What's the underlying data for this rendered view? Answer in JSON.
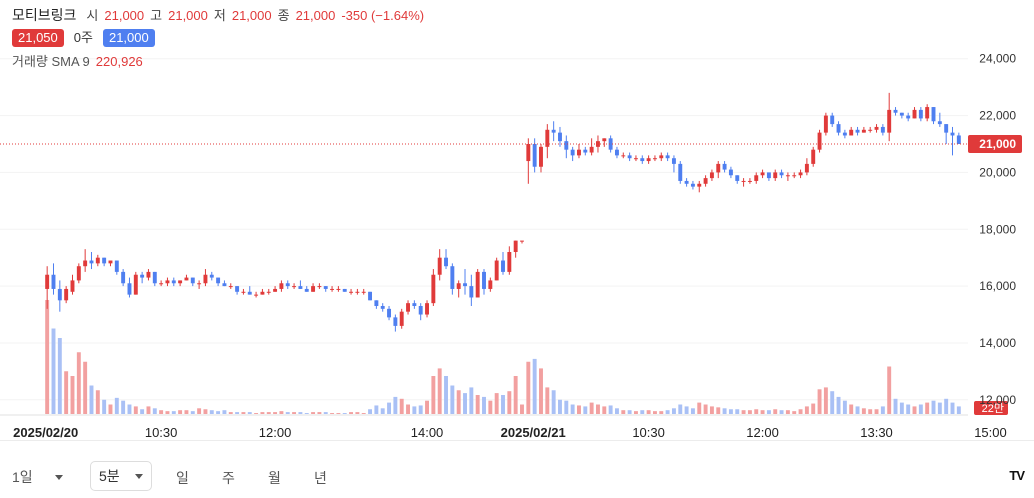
{
  "legend": {
    "name": "모티브링크",
    "open_label": "시",
    "open": "21,000",
    "high_label": "고",
    "high": "21,000",
    "low_label": "저",
    "low": "21,000",
    "close_label": "종",
    "close": "21,000",
    "change": "-350 (−1.64%)",
    "ask_price": "21,050",
    "qty": "0주",
    "bid_price": "21,000",
    "volume_label": "거래량 SMA 9",
    "volume_value": "220,926"
  },
  "colors": {
    "up": "#e03a3a",
    "down": "#4f7ff0",
    "up_volume": "#f2a0a0",
    "down_volume": "#a9c0f5",
    "price_line": "#e03a3a"
  },
  "toolbar": {
    "range": "1일",
    "interval": "5분",
    "day": "일",
    "week": "주",
    "month": "월",
    "year": "년",
    "logo": "TV"
  },
  "chart_data": {
    "type": "candlestick",
    "ylim": [
      11500,
      24800
    ],
    "y_ticks": [
      "24,000",
      "22,000",
      "20,000",
      "18,000",
      "16,000",
      "14,000",
      "12,000"
    ],
    "y_tick_values": [
      24000,
      22000,
      20000,
      18000,
      16000,
      14000,
      12000
    ],
    "x_ticks": [
      "2025/02/20",
      "10:30",
      "12:00",
      "14:00",
      "2025/02/21",
      "10:30",
      "12:00",
      "13:30",
      "15:00"
    ],
    "x_tick_bold": [
      true,
      false,
      false,
      false,
      true,
      false,
      false,
      false,
      false
    ],
    "x_tick_index": [
      0,
      18,
      36,
      60,
      77,
      95,
      113,
      131,
      149
    ],
    "last_price": 21000,
    "last_price_label": "21,000",
    "volume_label": "22만",
    "bars": [
      [
        15900,
        16700,
        15200,
        16400,
        120
      ],
      [
        16400,
        16800,
        15700,
        15900,
        90
      ],
      [
        15900,
        16200,
        15100,
        15500,
        80
      ],
      [
        15500,
        16000,
        15400,
        15900,
        45
      ],
      [
        15800,
        16400,
        15700,
        16200,
        40
      ],
      [
        16200,
        16800,
        16100,
        16700,
        65
      ],
      [
        16700,
        17300,
        16500,
        16900,
        55
      ],
      [
        16900,
        17200,
        16600,
        16800,
        30
      ],
      [
        16800,
        17100,
        16700,
        17000,
        25
      ],
      [
        17000,
        17000,
        16700,
        16800,
        15
      ],
      [
        16800,
        16900,
        16700,
        16900,
        10
      ],
      [
        16900,
        16900,
        16400,
        16500,
        17
      ],
      [
        16500,
        16600,
        16000,
        16100,
        14
      ],
      [
        16100,
        16300,
        15600,
        15700,
        10
      ],
      [
        15700,
        16500,
        15700,
        16400,
        8
      ],
      [
        16400,
        16500,
        16100,
        16300,
        5
      ],
      [
        16300,
        16600,
        16200,
        16500,
        8
      ],
      [
        16500,
        16500,
        16000,
        16100,
        6
      ],
      [
        16100,
        16200,
        16000,
        16100,
        4
      ],
      [
        16100,
        16300,
        16000,
        16200,
        3
      ],
      [
        16200,
        16300,
        16000,
        16100,
        3
      ],
      [
        16100,
        16200,
        16000,
        16200,
        4
      ],
      [
        16200,
        16400,
        16200,
        16300,
        4
      ],
      [
        16300,
        16300,
        16000,
        16100,
        3
      ],
      [
        16100,
        16200,
        15900,
        16100,
        6
      ],
      [
        16100,
        16600,
        16000,
        16400,
        5
      ],
      [
        16400,
        16500,
        16200,
        16300,
        4
      ],
      [
        16300,
        16300,
        16000,
        16100,
        3
      ],
      [
        16100,
        16200,
        16000,
        16000,
        4
      ],
      [
        16000,
        16100,
        15900,
        16000,
        2
      ],
      [
        16000,
        16000,
        15700,
        15800,
        2
      ],
      [
        15800,
        15900,
        15700,
        15800,
        2
      ],
      [
        15800,
        16000,
        15700,
        15700,
        2
      ],
      [
        15700,
        15800,
        15600,
        15700,
        1
      ],
      [
        15700,
        15900,
        15700,
        15800,
        2
      ],
      [
        15800,
        15900,
        15700,
        15800,
        2
      ],
      [
        15800,
        16000,
        15800,
        15900,
        2
      ],
      [
        15900,
        16200,
        15800,
        16100,
        3
      ],
      [
        16100,
        16200,
        15900,
        16000,
        2
      ],
      [
        16000,
        16100,
        15900,
        16000,
        2
      ],
      [
        16000,
        16200,
        15900,
        15900,
        2
      ],
      [
        15900,
        16000,
        15800,
        15800,
        1
      ],
      [
        15800,
        16100,
        15800,
        16000,
        2
      ],
      [
        16000,
        16100,
        15900,
        16000,
        2
      ],
      [
        16000,
        16000,
        15800,
        15900,
        2
      ],
      [
        15900,
        16000,
        15800,
        15900,
        1
      ],
      [
        15900,
        16000,
        15800,
        15900,
        1
      ],
      [
        15900,
        15900,
        15800,
        15800,
        1
      ],
      [
        15800,
        15900,
        15700,
        15800,
        2
      ],
      [
        15800,
        15900,
        15700,
        15800,
        2
      ],
      [
        15800,
        15900,
        15700,
        15800,
        1
      ],
      [
        15800,
        15800,
        15500,
        15500,
        5
      ],
      [
        15500,
        15500,
        15200,
        15300,
        9
      ],
      [
        15300,
        15400,
        15100,
        15200,
        6
      ],
      [
        15200,
        15300,
        14800,
        14900,
        12
      ],
      [
        14900,
        15000,
        14400,
        14600,
        18
      ],
      [
        14600,
        15200,
        14500,
        15100,
        16
      ],
      [
        15100,
        15500,
        15000,
        15400,
        10
      ],
      [
        15400,
        15500,
        15200,
        15300,
        8
      ],
      [
        15300,
        15400,
        14800,
        15000,
        9
      ],
      [
        15000,
        15500,
        14900,
        15400,
        14
      ],
      [
        15400,
        16600,
        15300,
        16400,
        40
      ],
      [
        16400,
        17300,
        16200,
        17000,
        48
      ],
      [
        17000,
        17300,
        16600,
        16700,
        40
      ],
      [
        16700,
        16800,
        15700,
        15900,
        30
      ],
      [
        15900,
        16200,
        15600,
        16100,
        25
      ],
      [
        16100,
        16600,
        15700,
        16000,
        22
      ],
      [
        16000,
        16400,
        15300,
        15600,
        28
      ],
      [
        15600,
        16600,
        15600,
        16500,
        20
      ],
      [
        16500,
        16600,
        15700,
        15900,
        18
      ],
      [
        15900,
        16300,
        15800,
        16200,
        14
      ],
      [
        16200,
        17000,
        16200,
        16900,
        22
      ],
      [
        16900,
        17200,
        16400,
        16500,
        20
      ],
      [
        16500,
        17400,
        16400,
        17200,
        24
      ],
      [
        17200,
        17600,
        17000,
        17600,
        40
      ],
      [
        17600,
        17600,
        17500,
        17600,
        10
      ],
      [
        20400,
        21200,
        19600,
        21000,
        55
      ],
      [
        21000,
        21200,
        20000,
        20200,
        58
      ],
      [
        20200,
        21000,
        20000,
        20900,
        48
      ],
      [
        20900,
        21700,
        20500,
        21500,
        28
      ],
      [
        21500,
        21800,
        21100,
        21400,
        25
      ],
      [
        21400,
        21600,
        20900,
        21100,
        15
      ],
      [
        21100,
        21300,
        20500,
        20800,
        14
      ],
      [
        20800,
        20900,
        20400,
        20600,
        10
      ],
      [
        20600,
        21000,
        20500,
        20800,
        9
      ],
      [
        20800,
        20900,
        20600,
        20700,
        8
      ],
      [
        20700,
        21200,
        20600,
        20900,
        12
      ],
      [
        20900,
        21300,
        20700,
        21100,
        10
      ],
      [
        21100,
        21200,
        20900,
        21200,
        8
      ],
      [
        21200,
        21300,
        20700,
        20800,
        9
      ],
      [
        20800,
        20900,
        20500,
        20600,
        6
      ],
      [
        20600,
        20700,
        20500,
        20600,
        4
      ],
      [
        20600,
        20700,
        20400,
        20500,
        4
      ],
      [
        20500,
        20600,
        20400,
        20500,
        3
      ],
      [
        20500,
        20600,
        20300,
        20400,
        4
      ],
      [
        20400,
        20600,
        20300,
        20500,
        4
      ],
      [
        20500,
        20600,
        20400,
        20500,
        3
      ],
      [
        20500,
        20700,
        20400,
        20600,
        3
      ],
      [
        20600,
        20700,
        20400,
        20500,
        4
      ],
      [
        20500,
        20600,
        20000,
        20300,
        6
      ],
      [
        20300,
        20400,
        19600,
        19700,
        10
      ],
      [
        19700,
        19800,
        19500,
        19600,
        8
      ],
      [
        19600,
        19700,
        19400,
        19500,
        6
      ],
      [
        19500,
        19700,
        19300,
        19600,
        12
      ],
      [
        19600,
        19900,
        19500,
        19800,
        10
      ],
      [
        19800,
        20100,
        19700,
        20000,
        8
      ],
      [
        20000,
        20400,
        19800,
        20300,
        7
      ],
      [
        20300,
        20400,
        20000,
        20100,
        6
      ],
      [
        20100,
        20200,
        19800,
        19900,
        5
      ],
      [
        19900,
        19900,
        19600,
        19700,
        5
      ],
      [
        19700,
        19800,
        19500,
        19700,
        4
      ],
      [
        19700,
        19800,
        19600,
        19700,
        4
      ],
      [
        19700,
        20000,
        19600,
        19900,
        5
      ],
      [
        19900,
        20100,
        19800,
        20000,
        4
      ],
      [
        20000,
        20000,
        19700,
        19800,
        4
      ],
      [
        19800,
        20100,
        19700,
        20000,
        5
      ],
      [
        20000,
        20100,
        19800,
        19900,
        4
      ],
      [
        19900,
        20000,
        19700,
        19900,
        4
      ],
      [
        19900,
        20000,
        19800,
        19900,
        3
      ],
      [
        19900,
        20100,
        19800,
        20000,
        5
      ],
      [
        20000,
        20500,
        19900,
        20300,
        8
      ],
      [
        20300,
        20900,
        20200,
        20800,
        11
      ],
      [
        20800,
        21500,
        20700,
        21400,
        26
      ],
      [
        21400,
        22100,
        21300,
        22000,
        28
      ],
      [
        22000,
        22100,
        21600,
        21700,
        24
      ],
      [
        21700,
        21800,
        21300,
        21400,
        18
      ],
      [
        21400,
        21500,
        21200,
        21300,
        14
      ],
      [
        21300,
        21600,
        21300,
        21500,
        10
      ],
      [
        21500,
        21600,
        21300,
        21400,
        8
      ],
      [
        21400,
        21600,
        21400,
        21500,
        6
      ],
      [
        21500,
        21600,
        21400,
        21500,
        5
      ],
      [
        21500,
        21700,
        21400,
        21600,
        5
      ],
      [
        21600,
        21700,
        21300,
        21400,
        8
      ],
      [
        21400,
        22800,
        21100,
        22200,
        50
      ],
      [
        22200,
        22300,
        22000,
        22100,
        16
      ],
      [
        22100,
        22100,
        21900,
        22000,
        12
      ],
      [
        22000,
        22100,
        21800,
        21900,
        10
      ],
      [
        21900,
        22300,
        21900,
        22200,
        8
      ],
      [
        22200,
        22300,
        21800,
        21900,
        10
      ],
      [
        21900,
        22400,
        21800,
        22300,
        12
      ],
      [
        22300,
        22300,
        21700,
        21800,
        14
      ],
      [
        21800,
        22100,
        21600,
        21700,
        12
      ],
      [
        21700,
        21700,
        21000,
        21400,
        16
      ],
      [
        21400,
        21600,
        20600,
        21300,
        12
      ],
      [
        21300,
        21400,
        21000,
        21000,
        8
      ]
    ]
  }
}
